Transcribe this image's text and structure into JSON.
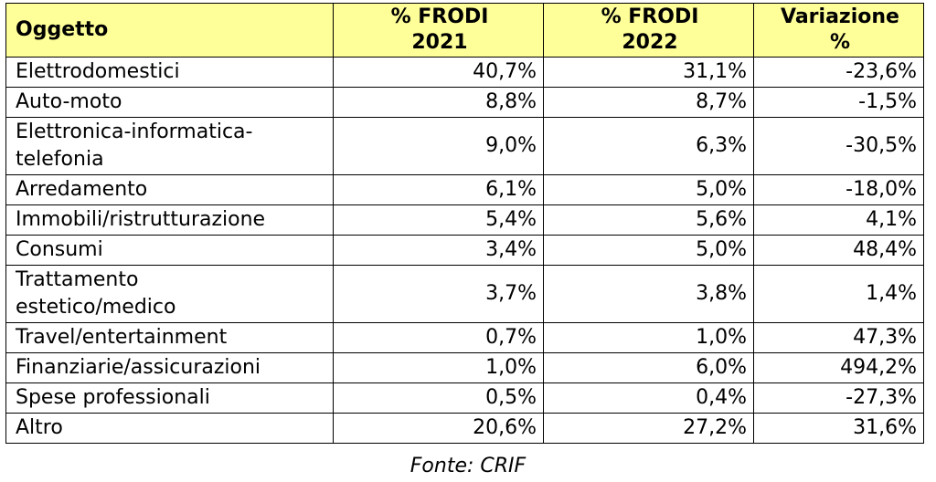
{
  "table": {
    "headers": {
      "object": "Oggetto",
      "y2021_line1": "% FRODI",
      "y2021_line2": "2021",
      "y2022_line1": "% FRODI",
      "y2022_line2": "2022",
      "change_line1": "Variazione",
      "change_line2": "%"
    },
    "rows": [
      {
        "object": "Elettrodomestici",
        "y2021": "40,7%",
        "y2022": "31,1%",
        "change": "-23,6%"
      },
      {
        "object": "Auto-moto",
        "y2021": "8,8%",
        "y2022": "8,7%",
        "change": "-1,5%"
      },
      {
        "object_line1": "Elettronica-informatica-",
        "object_line2": "telefonia",
        "y2021": "9,0%",
        "y2022": "6,3%",
        "change": "-30,5%"
      },
      {
        "object": "Arredamento",
        "y2021": "6,1%",
        "y2022": "5,0%",
        "change": "-18,0%"
      },
      {
        "object": "Immobili/ristrutturazione",
        "y2021": "5,4%",
        "y2022": "5,6%",
        "change": "4,1%"
      },
      {
        "object": "Consumi",
        "y2021": "3,4%",
        "y2022": "5,0%",
        "change": "48,4%"
      },
      {
        "object_line1": "Trattamento",
        "object_line2": "estetico/medico",
        "y2021": "3,7%",
        "y2022": "3,8%",
        "change": "1,4%"
      },
      {
        "object": "Travel/entertainment",
        "y2021": "0,7%",
        "y2022": "1,0%",
        "change": "47,3%"
      },
      {
        "object": "Finanziarie/assicurazioni",
        "y2021": "1,0%",
        "y2022": "6,0%",
        "change": "494,2%"
      },
      {
        "object": "Spese professionali",
        "y2021": "0,5%",
        "y2022": "0,4%",
        "change": "-27,3%"
      },
      {
        "object": "Altro",
        "y2021": "20,6%",
        "y2022": "27,2%",
        "change": "31,6%"
      }
    ]
  },
  "source": "Fonte: CRIF",
  "colors": {
    "header_background": "#ffff99",
    "border": "#000000"
  }
}
